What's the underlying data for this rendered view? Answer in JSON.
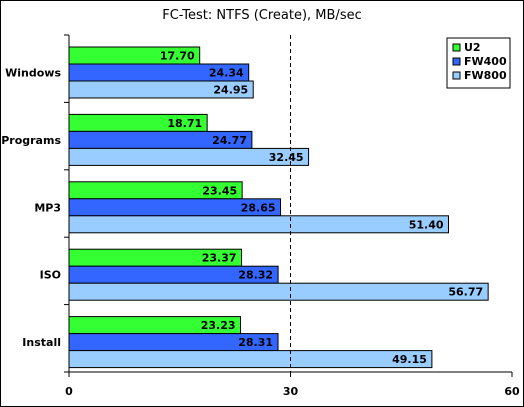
{
  "chart_data": {
    "type": "bar",
    "orientation": "horizontal",
    "title": "FC-Test: NTFS (Create), MB/sec",
    "categories": [
      "Windows",
      "Programs",
      "MP3",
      "ISO",
      "Install"
    ],
    "series": [
      {
        "name": "U2",
        "values": [
          17.7,
          18.71,
          23.45,
          23.37,
          23.23
        ],
        "color": "#33ff33"
      },
      {
        "name": "FW400",
        "values": [
          24.34,
          24.77,
          28.65,
          28.32,
          28.31
        ],
        "color": "#3366ff"
      },
      {
        "name": "FW800",
        "values": [
          24.95,
          32.45,
          51.4,
          56.77,
          49.15
        ],
        "color": "#99ccff"
      }
    ],
    "xlim": [
      0,
      60
    ],
    "xticks": [
      "0",
      "30",
      "60"
    ],
    "reference_line": 30,
    "legend_position": "top-right",
    "grid": false
  }
}
